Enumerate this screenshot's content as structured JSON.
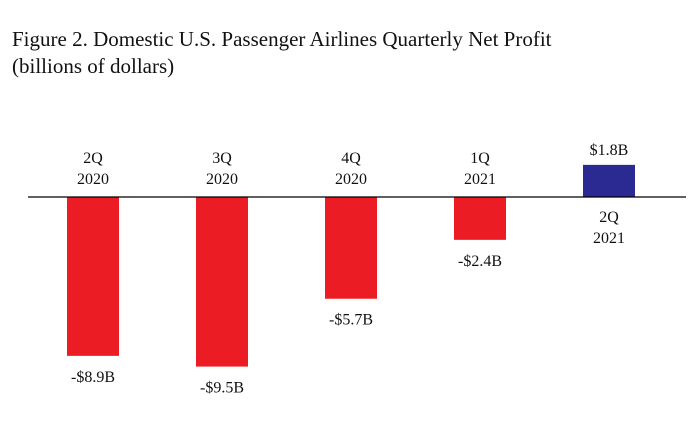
{
  "title_line1": "Figure 2. Domestic U.S. Passenger Airlines Quarterly Net Profit",
  "title_line2": "(billions of dollars)",
  "colors": {
    "negative": "#ec1c24",
    "positive": "#2b2a92",
    "axis": "#000000"
  },
  "chart_data": {
    "type": "bar",
    "title": "Figure 2. Domestic U.S. Passenger Airlines Quarterly Net Profit",
    "subtitle": "(billions of dollars)",
    "categories": [
      [
        "2Q",
        "2020"
      ],
      [
        "3Q",
        "2020"
      ],
      [
        "4Q",
        "2020"
      ],
      [
        "1Q",
        "2021"
      ],
      [
        "2Q",
        "2021"
      ]
    ],
    "values": [
      -8.9,
      -9.5,
      -5.7,
      -2.4,
      1.8
    ],
    "data_labels": [
      "-$8.9B",
      "-$9.5B",
      "-$5.7B",
      "-$2.4B",
      "$1.8B"
    ],
    "xlabel": "",
    "ylabel": "",
    "ylim": [
      -9.5,
      1.8
    ],
    "grid": false,
    "legend": "none"
  }
}
